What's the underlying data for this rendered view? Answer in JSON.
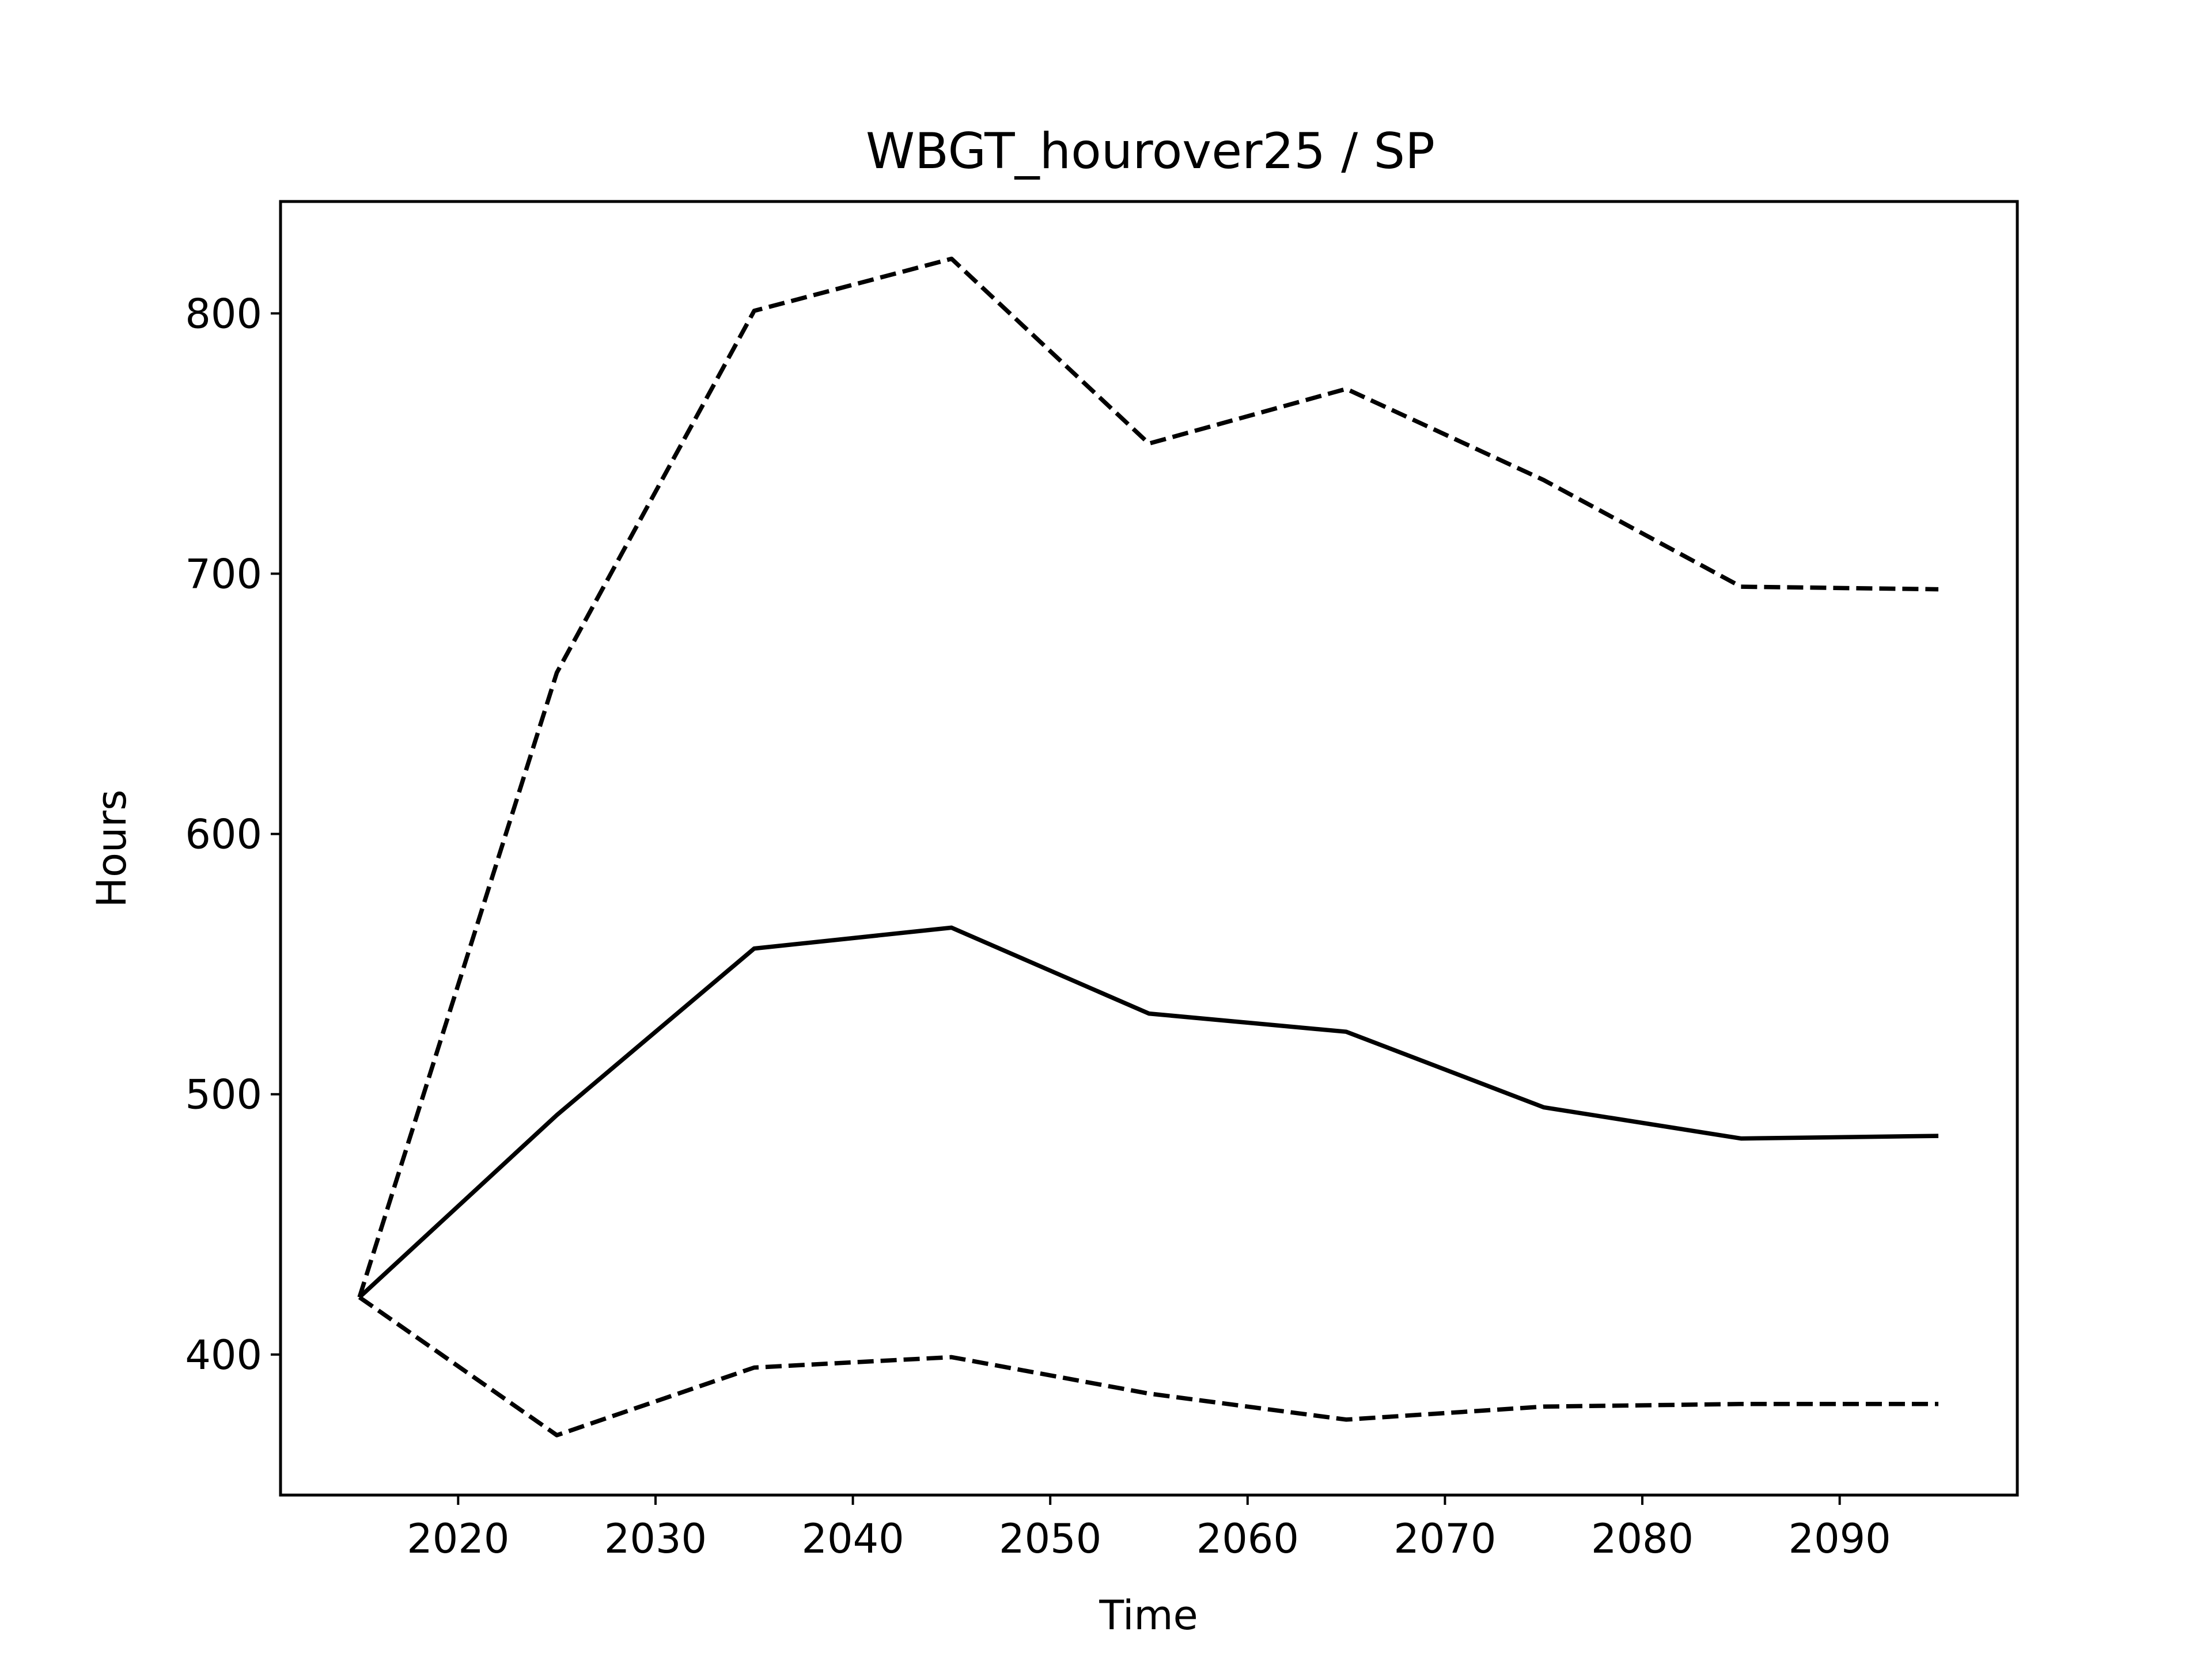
{
  "chart_data": {
    "type": "line",
    "title": "WBGT_hourover25 / SP",
    "xlabel": "Time",
    "ylabel": "Hours",
    "xlim": [
      2011,
      2099
    ],
    "ylim": [
      346,
      843
    ],
    "xticks": [
      2020,
      2030,
      2040,
      2050,
      2060,
      2070,
      2080,
      2090
    ],
    "yticks": [
      400,
      500,
      600,
      700,
      800
    ],
    "grid": false,
    "legend": "none",
    "x": [
      2015,
      2025,
      2035,
      2045,
      2055,
      2065,
      2075,
      2085,
      2095
    ],
    "series": [
      {
        "style": "solid",
        "color": "#000000",
        "values": [
          422,
          492,
          556,
          564,
          531,
          524,
          495,
          483,
          484
        ]
      },
      {
        "style": "dashed",
        "color": "#000000",
        "values": [
          422,
          662,
          801,
          821,
          750,
          771,
          736,
          695,
          694
        ]
      },
      {
        "style": "dashed",
        "color": "#000000",
        "values": [
          422,
          369,
          395,
          399,
          385,
          375,
          380,
          381,
          381
        ]
      }
    ]
  }
}
